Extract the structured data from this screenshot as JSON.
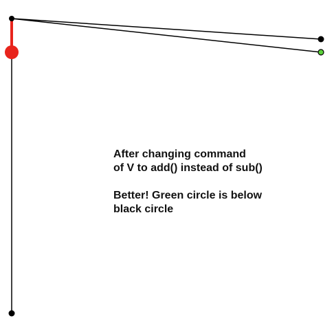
{
  "annotation": {
    "line1": "After changing command",
    "line2": "of V to add() instead of sub()",
    "line3": "Better! Green circle is below",
    "line4": "black circle"
  },
  "colors": {
    "background": "#ffffff",
    "line": "#000000",
    "highlight_segment": "#e8241c",
    "highlight_dot": "#e8241c",
    "green_point": "#5bd13a",
    "black_point": "#000000"
  }
}
